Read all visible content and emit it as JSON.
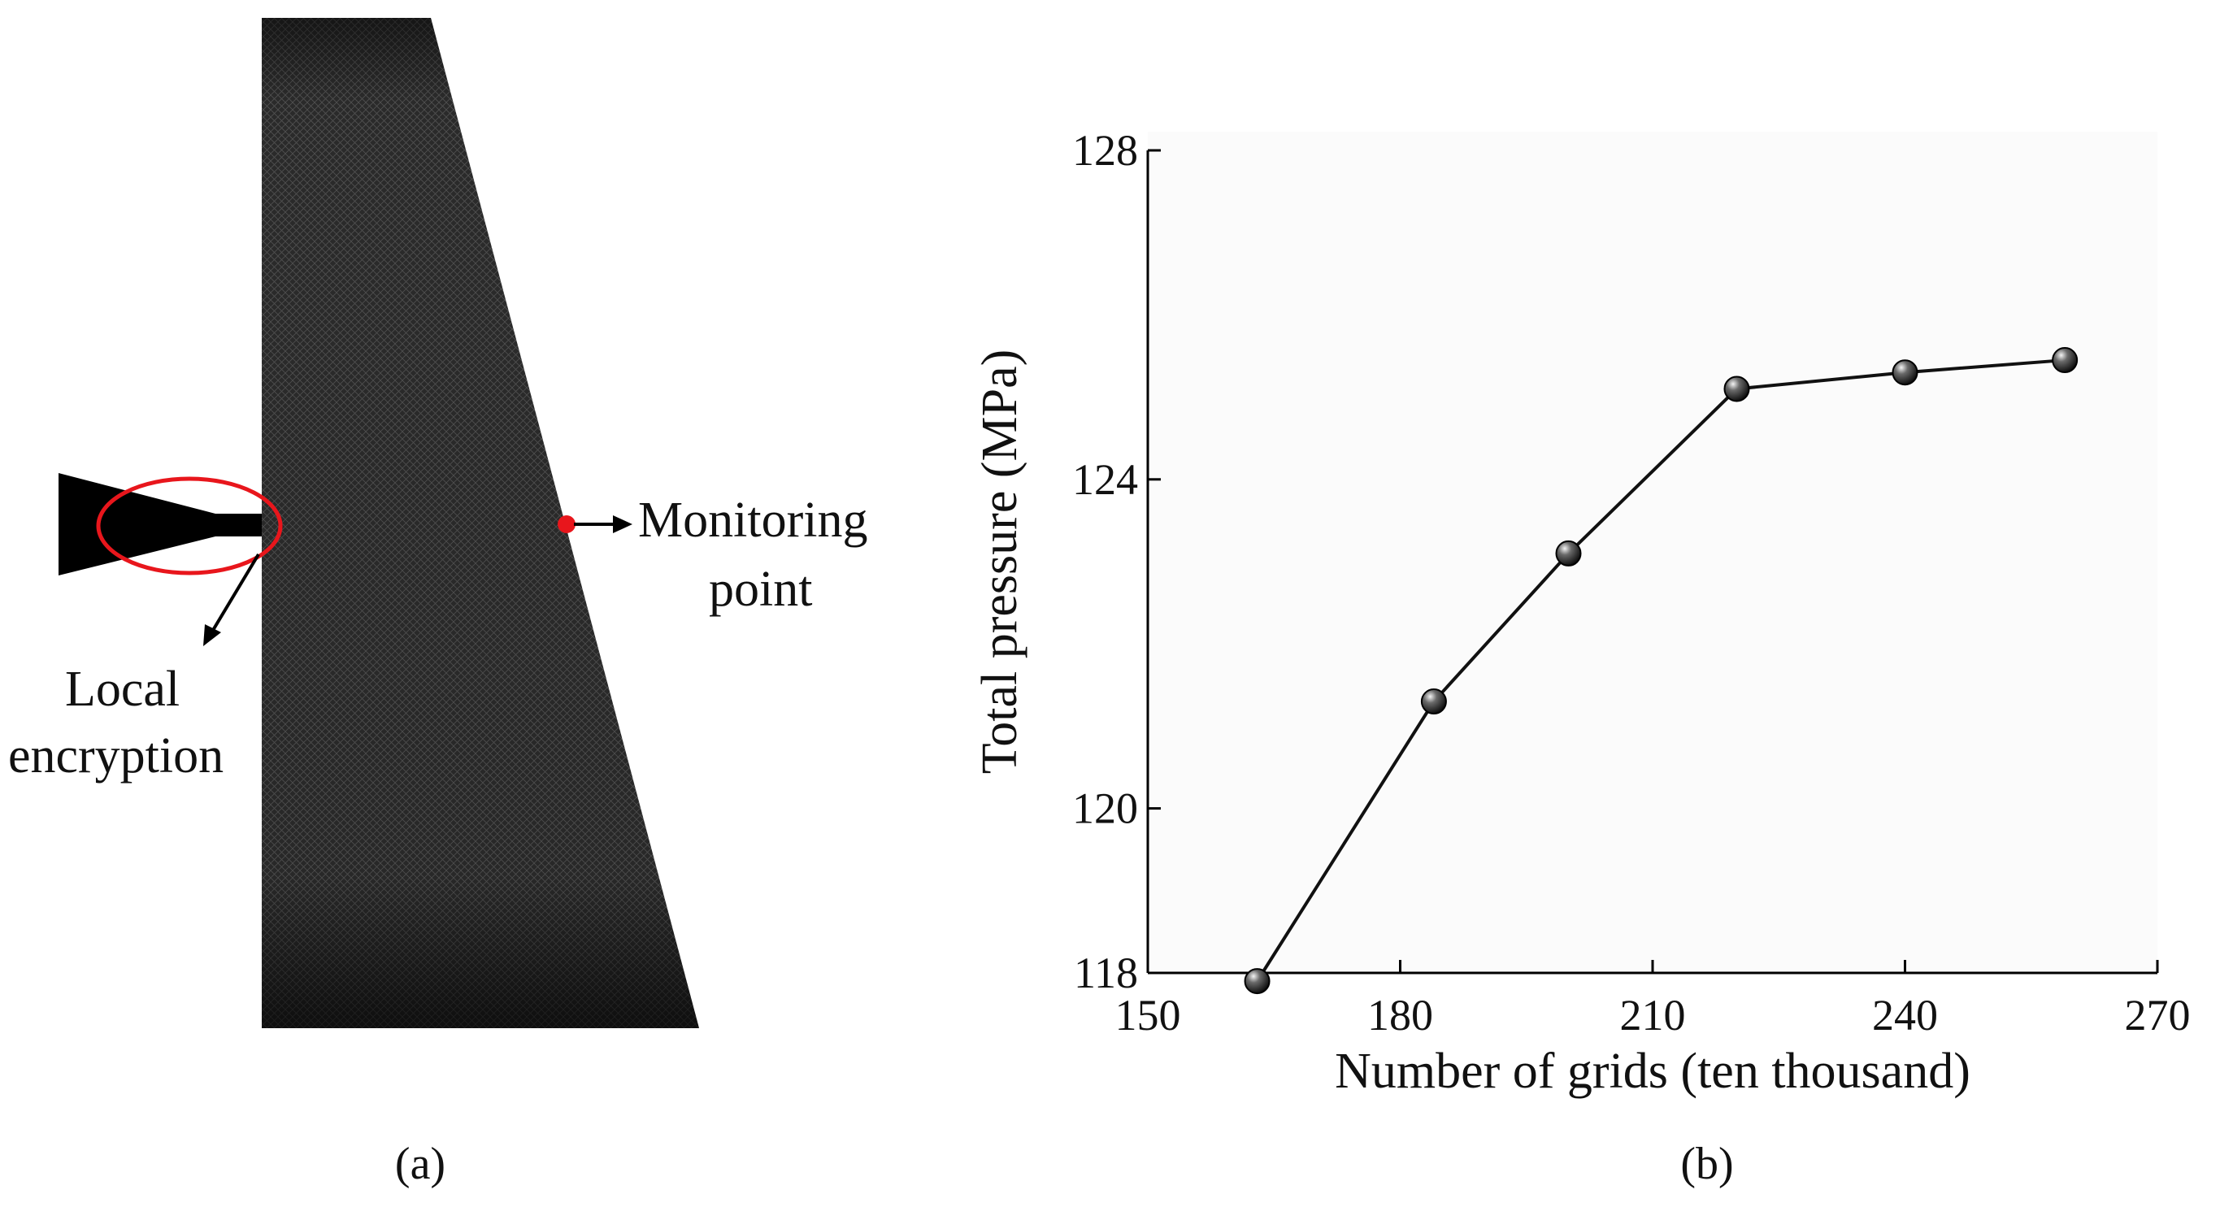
{
  "panel_a": {
    "monitoring_label_line1": "Monitoring",
    "monitoring_label_line2": "point",
    "local_label_line1": "Local",
    "local_label_line2": "encryption",
    "caption": "(a)",
    "colors": {
      "mesh": "#2a2a2a",
      "highlight": "#e8161c",
      "point": "#e8161c"
    }
  },
  "panel_b": {
    "caption": "(b)"
  },
  "chart_data": {
    "type": "line",
    "title": "",
    "xlabel": "Number of grids (ten thousand)",
    "ylabel": "Total pressure (MPa)",
    "xlim": [
      150,
      270
    ],
    "ylim": [
      118,
      128
    ],
    "x_ticks": [
      150,
      180,
      210,
      240,
      270
    ],
    "y_ticks": [
      118,
      120,
      124,
      128
    ],
    "y_tick_labels": [
      "118",
      "120",
      "124",
      "128"
    ],
    "x_tick_labels": [
      "150",
      "180",
      "210",
      "240",
      "270"
    ],
    "series": [
      {
        "x": [
          163,
          184,
          200,
          220,
          240,
          259
        ],
        "values": [
          117.9,
          121.3,
          123.1,
          125.1,
          125.3,
          125.45
        ],
        "color": "#111111",
        "marker": "circle"
      }
    ]
  }
}
